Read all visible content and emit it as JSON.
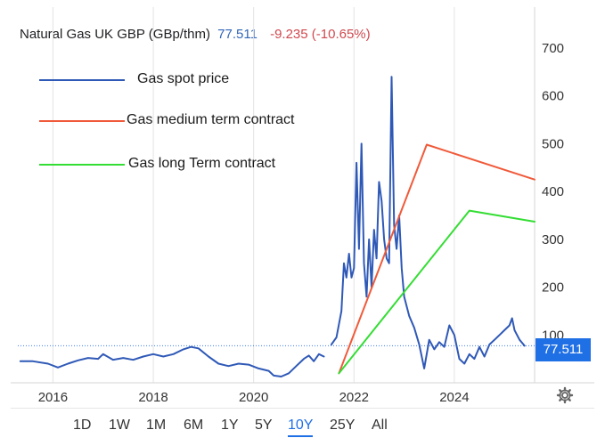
{
  "header": {
    "instrument": "Natural Gas UK GBP (GBp/thm)",
    "price": "77.511",
    "change": "-9.235 (-10.65%)"
  },
  "legend": {
    "items": [
      {
        "label": "Gas spot price",
        "color": "#2f59b7"
      },
      {
        "label": "Gas medium term contract",
        "color": "#f05a3a"
      },
      {
        "label": "Gas long Term  contract",
        "color": "#33dd33"
      }
    ]
  },
  "current_badge": "77.511",
  "timeframes": {
    "options": [
      "1D",
      "1W",
      "1M",
      "6M",
      "1Y",
      "5Y",
      "10Y",
      "25Y",
      "All"
    ],
    "selected": "10Y"
  },
  "chart_data": {
    "type": "line",
    "title": "Natural Gas UK GBP (GBp/thm)",
    "ylim": [
      0,
      700
    ],
    "xlim": [
      2015.3,
      2025.6
    ],
    "y_ticks": [
      100,
      200,
      300,
      400,
      500,
      600,
      700
    ],
    "x_ticks": [
      2016,
      2018,
      2020,
      2022,
      2024
    ],
    "grid": "vertical",
    "current_value": 77.511,
    "series": [
      {
        "name": "Gas spot price",
        "color": "#2f59b7",
        "x": [
          2015.35,
          2015.6,
          2015.9,
          2016.1,
          2016.3,
          2016.5,
          2016.7,
          2016.9,
          2017.0,
          2017.2,
          2017.4,
          2017.6,
          2017.8,
          2018.0,
          2018.2,
          2018.4,
          2018.6,
          2018.75,
          2018.9,
          2019.1,
          2019.3,
          2019.5,
          2019.7,
          2019.9,
          2020.1,
          2020.3,
          2020.4,
          2020.55,
          2020.7,
          2020.85,
          2021.0,
          2021.1,
          2021.2,
          2021.3,
          2021.4
        ],
        "y": [
          45,
          45,
          40,
          32,
          40,
          47,
          52,
          50,
          60,
          48,
          52,
          48,
          55,
          60,
          55,
          60,
          70,
          75,
          72,
          55,
          40,
          35,
          40,
          38,
          30,
          25,
          15,
          13,
          20,
          35,
          50,
          57,
          45,
          60,
          55
        ]
      },
      {
        "name": "Gas spot price",
        "color": "#2f59b7",
        "x": [
          2021.55,
          2021.65,
          2021.75,
          2021.8,
          2021.85,
          2021.9,
          2021.95,
          2022.0,
          2022.05,
          2022.1,
          2022.15,
          2022.2,
          2022.25,
          2022.3,
          2022.35,
          2022.4,
          2022.45,
          2022.5,
          2022.55,
          2022.6,
          2022.65,
          2022.7,
          2022.75,
          2022.8,
          2022.85,
          2022.9,
          2022.95,
          2023.0,
          2023.1,
          2023.2,
          2023.3,
          2023.4,
          2023.5,
          2023.6,
          2023.7,
          2023.8,
          2023.9,
          2024.0,
          2024.1,
          2024.2,
          2024.3,
          2024.4,
          2024.5,
          2024.6,
          2024.7,
          2024.8,
          2024.9,
          2025.0,
          2025.1,
          2025.15,
          2025.2,
          2025.3,
          2025.4
        ],
        "y": [
          80,
          95,
          150,
          250,
          220,
          270,
          220,
          240,
          460,
          280,
          500,
          250,
          180,
          300,
          200,
          320,
          260,
          420,
          380,
          300,
          260,
          250,
          640,
          330,
          280,
          350,
          240,
          180,
          140,
          115,
          80,
          30,
          90,
          70,
          85,
          75,
          120,
          100,
          50,
          40,
          60,
          50,
          75,
          55,
          80,
          90,
          100,
          110,
          120,
          135,
          110,
          90,
          77.5
        ]
      },
      {
        "name": "Gas medium term contract",
        "color": "#f05a3a",
        "x": [
          2021.7,
          2023.45,
          2025.6
        ],
        "y": [
          20,
          498,
          425
        ]
      },
      {
        "name": "Gas long Term  contract",
        "color": "#33dd33",
        "x": [
          2021.7,
          2024.3,
          2025.6
        ],
        "y": [
          20,
          360,
          337
        ]
      }
    ]
  }
}
